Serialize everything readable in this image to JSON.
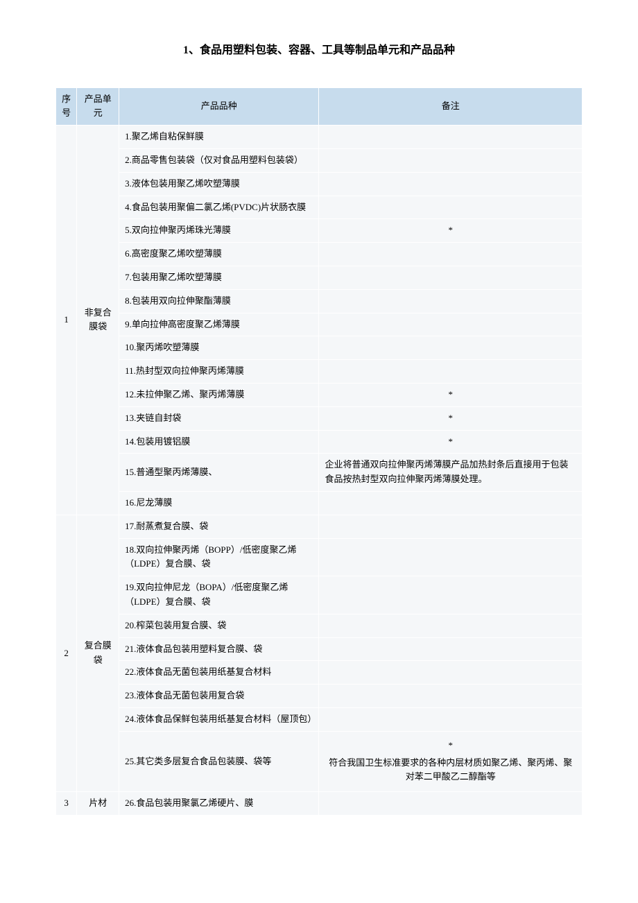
{
  "title": "1、食品用塑料包装、容器、工具等制品单元和产品品种",
  "headers": {
    "seq": "序号",
    "unit": "产品单元",
    "product": "产品品种",
    "note": "备注"
  },
  "groups": [
    {
      "seq": "1",
      "unit": "非复合膜袋",
      "rows": [
        {
          "product": "1.聚乙烯自粘保鲜膜",
          "note": ""
        },
        {
          "product": "2.商品零售包装袋（仅对食品用塑料包装袋）",
          "note": ""
        },
        {
          "product": "3.液体包装用聚乙烯吹塑薄膜",
          "note": ""
        },
        {
          "product": "4.食品包装用聚偏二氯乙烯(PVDC)片状肠衣膜",
          "note": ""
        },
        {
          "product": "5.双向拉伸聚丙烯珠光薄膜",
          "note": "*",
          "note_center": true
        },
        {
          "product": "6.高密度聚乙烯吹塑薄膜",
          "note": ""
        },
        {
          "product": "7.包装用聚乙烯吹塑薄膜",
          "note": ""
        },
        {
          "product": "8.包装用双向拉伸聚酯薄膜",
          "note": ""
        },
        {
          "product": "9.单向拉伸高密度聚乙烯薄膜",
          "note": ""
        },
        {
          "product": "10.聚丙烯吹塑薄膜",
          "note": ""
        },
        {
          "product": "11.热封型双向拉伸聚丙烯薄膜",
          "note": ""
        },
        {
          "product": "12.未拉伸聚乙烯、聚丙烯薄膜",
          "note": "*",
          "note_center": true
        },
        {
          "product": "13.夹链自封袋",
          "note": "*",
          "note_center": true
        },
        {
          "product": "14.包装用镀铝膜",
          "note": "*",
          "note_center": true
        },
        {
          "product": "15.普通型聚丙烯薄膜、",
          "note": "企业将普通双向拉伸聚丙烯薄膜产品加热封条后直接用于包装食品按热封型双向拉伸聚丙烯薄膜处理。"
        },
        {
          "product": "16.尼龙薄膜",
          "note": ""
        }
      ]
    },
    {
      "seq": "2",
      "unit": "复合膜袋",
      "rows": [
        {
          "product": "17.耐蒸煮复合膜、袋",
          "note": ""
        },
        {
          "product": "18.双向拉伸聚丙烯（BOPP）/低密度聚乙烯（LDPE）复合膜、袋",
          "note": ""
        },
        {
          "product": "19.双向拉伸尼龙（BOPA）/低密度聚乙烯（LDPE）复合膜、袋",
          "note": ""
        },
        {
          "product": "20.榨菜包装用复合膜、袋",
          "note": ""
        },
        {
          "product": "21.液体食品包装用塑料复合膜、袋",
          "note": ""
        },
        {
          "product": "22.液体食品无菌包装用纸基复合材料",
          "note": ""
        },
        {
          "product": "23.液体食品无菌包装用复合袋",
          "note": ""
        },
        {
          "product": "24.液体食品保鲜包装用纸基复合材料（屋顶包）",
          "note": ""
        },
        {
          "product": "25.其它类多层复合食品包装膜、袋等",
          "note_lines": [
            "*",
            "符合我国卫生标准要求的各种内层材质如聚乙烯、聚丙烯、聚对苯二甲酸乙二醇酯等"
          ],
          "note_center": true
        }
      ]
    },
    {
      "seq": "3",
      "unit": "片材",
      "rows": [
        {
          "product": "26.食品包装用聚氯乙烯硬片、膜",
          "note": ""
        }
      ]
    }
  ]
}
